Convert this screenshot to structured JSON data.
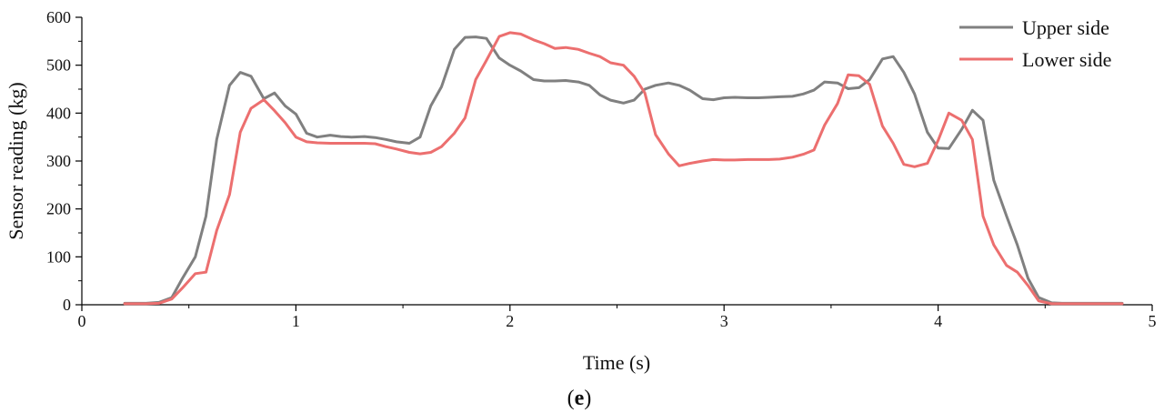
{
  "panel_label_open": "(",
  "panel_label_letter": "e",
  "panel_label_close": ")",
  "chart_data": {
    "type": "line",
    "title": "",
    "xlabel": "Time (s)",
    "ylabel": "Sensor reading (kg)",
    "xlim": [
      0,
      5
    ],
    "ylim": [
      0,
      600
    ],
    "xticks": [
      0,
      1,
      2,
      3,
      4,
      5
    ],
    "yticks": [
      0,
      100,
      200,
      300,
      400,
      500,
      600
    ],
    "grid": false,
    "legend": "top-right",
    "series": [
      {
        "name": "Upper side",
        "color": "#808080",
        "x": [
          0.2,
          0.3,
          0.36,
          0.42,
          0.47,
          0.53,
          0.58,
          0.63,
          0.69,
          0.74,
          0.79,
          0.85,
          0.9,
          0.95,
          1.0,
          1.05,
          1.1,
          1.16,
          1.21,
          1.26,
          1.32,
          1.37,
          1.42,
          1.47,
          1.53,
          1.58,
          1.63,
          1.68,
          1.74,
          1.79,
          1.84,
          1.89,
          1.95,
          2.0,
          2.05,
          2.11,
          2.16,
          2.21,
          2.26,
          2.32,
          2.37,
          2.42,
          2.47,
          2.53,
          2.58,
          2.63,
          2.68,
          2.74,
          2.79,
          2.84,
          2.9,
          2.95,
          3.0,
          3.05,
          3.11,
          3.16,
          3.21,
          3.26,
          3.32,
          3.37,
          3.42,
          3.47,
          3.53,
          3.58,
          3.63,
          3.68,
          3.74,
          3.79,
          3.84,
          3.89,
          3.95,
          4.0,
          4.05,
          4.11,
          4.16,
          4.21,
          4.26,
          4.32,
          4.37,
          4.42,
          4.47,
          4.53,
          4.58,
          4.63,
          4.7,
          4.8,
          4.86
        ],
        "values": [
          3,
          3,
          5,
          15,
          55,
          100,
          185,
          345,
          458,
          485,
          477,
          430,
          442,
          415,
          398,
          358,
          350,
          354,
          351,
          350,
          351,
          349,
          345,
          340,
          337,
          350,
          415,
          455,
          533,
          558,
          559,
          556,
          515,
          500,
          488,
          470,
          467,
          467,
          468,
          465,
          458,
          438,
          427,
          421,
          427,
          450,
          458,
          463,
          458,
          448,
          430,
          428,
          432,
          433,
          432,
          432,
          433,
          434,
          435,
          440,
          448,
          465,
          463,
          451,
          453,
          470,
          513,
          518,
          485,
          440,
          360,
          327,
          326,
          366,
          406,
          385,
          260,
          185,
          125,
          55,
          15,
          4,
          3,
          3,
          3,
          3,
          3
        ]
      },
      {
        "name": "Lower side",
        "color": "#ec6f6f",
        "x": [
          0.2,
          0.3,
          0.36,
          0.42,
          0.47,
          0.53,
          0.58,
          0.63,
          0.69,
          0.74,
          0.79,
          0.85,
          0.9,
          0.95,
          1.0,
          1.05,
          1.1,
          1.16,
          1.21,
          1.26,
          1.32,
          1.37,
          1.42,
          1.47,
          1.53,
          1.58,
          1.63,
          1.68,
          1.74,
          1.79,
          1.84,
          1.89,
          1.95,
          2.0,
          2.05,
          2.11,
          2.16,
          2.21,
          2.26,
          2.32,
          2.37,
          2.42,
          2.47,
          2.53,
          2.58,
          2.63,
          2.68,
          2.74,
          2.79,
          2.84,
          2.9,
          2.95,
          3.0,
          3.05,
          3.11,
          3.16,
          3.21,
          3.26,
          3.32,
          3.37,
          3.42,
          3.47,
          3.53,
          3.58,
          3.63,
          3.68,
          3.74,
          3.79,
          3.84,
          3.89,
          3.95,
          4.0,
          4.05,
          4.11,
          4.16,
          4.21,
          4.26,
          4.32,
          4.37,
          4.42,
          4.47,
          4.53,
          4.58,
          4.63,
          4.7,
          4.8,
          4.86
        ],
        "values": [
          2,
          2,
          3,
          12,
          35,
          65,
          68,
          155,
          230,
          360,
          410,
          428,
          405,
          380,
          350,
          340,
          338,
          337,
          337,
          337,
          337,
          336,
          330,
          325,
          318,
          315,
          318,
          330,
          358,
          390,
          470,
          510,
          560,
          568,
          565,
          553,
          545,
          535,
          537,
          533,
          525,
          518,
          505,
          500,
          477,
          442,
          355,
          315,
          290,
          295,
          300,
          303,
          302,
          302,
          303,
          303,
          303,
          304,
          308,
          314,
          323,
          375,
          420,
          480,
          478,
          460,
          373,
          337,
          293,
          288,
          295,
          343,
          400,
          385,
          345,
          185,
          125,
          82,
          68,
          40,
          8,
          2,
          2,
          2,
          2,
          2,
          2
        ]
      }
    ]
  }
}
